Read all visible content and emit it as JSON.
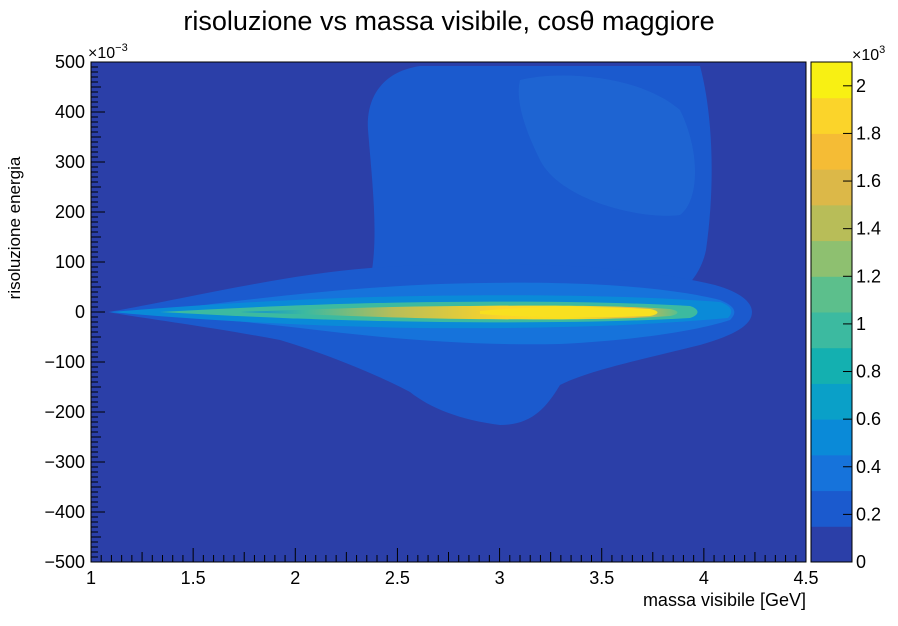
{
  "chart_data": {
    "type": "heatmap",
    "title": "risoluzione vs massa visibile,  cosθ maggiore",
    "xlabel": "massa visibile [GeV]",
    "ylabel": "risoluzione energia",
    "xlim": [
      1,
      4.5
    ],
    "ylim": [
      -0.5,
      0.5
    ],
    "x_ticks": [
      "1",
      "1.5",
      "2",
      "2.5",
      "3",
      "3.5",
      "4",
      "4.5"
    ],
    "y_ticks": [
      "−500",
      "−400",
      "−300",
      "−200",
      "−100",
      "0",
      "100",
      "200",
      "300",
      "400",
      "500"
    ],
    "y_exponent": "×10",
    "y_exponent_power": "−3",
    "z_exponent": "×10",
    "z_exponent_power": "3",
    "z_ticks": [
      "0",
      "0.2",
      "0.4",
      "0.6",
      "0.8",
      "1",
      "1.2",
      "1.4",
      "1.6",
      "1.8",
      "2"
    ],
    "zlim": [
      0,
      2.1
    ],
    "palette": [
      "#2b3fa8",
      "#1b5ace",
      "#1673db",
      "#0a8ad8",
      "#0aa0c8",
      "#14b0b0",
      "#3cbaa0",
      "#5cbf8c",
      "#8ec070",
      "#b8bd58",
      "#dcb848",
      "#f5bc35",
      "#fbd42a",
      "#f8f013"
    ],
    "regions": [
      {
        "kind": "core_band",
        "x": [
          1.1,
          4.2
        ],
        "y_center": 0,
        "peak_x": 3.3,
        "peak_value": 2.0
      },
      {
        "kind": "upper_lobe",
        "x": [
          2.35,
          4.05
        ],
        "y": [
          0.1,
          0.5
        ],
        "value": 0.18
      },
      {
        "kind": "lower_lobe",
        "x": [
          1.6,
          3.95
        ],
        "y": [
          -0.22,
          0
        ],
        "value": 0.12
      }
    ]
  }
}
